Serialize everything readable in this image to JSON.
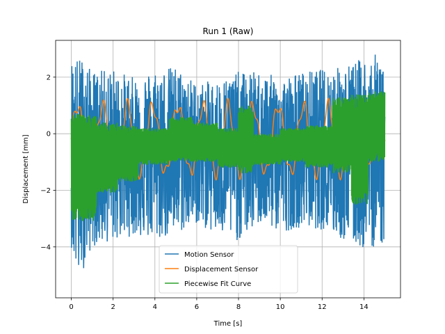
{
  "chart_data": {
    "type": "line",
    "title": "Run 1 (Raw)",
    "xlabel": "Time [s]",
    "ylabel": "Displacement [mm]",
    "xlim": [
      -0.75,
      15.75
    ],
    "ylim": [
      -5.8,
      3.3
    ],
    "xticks": [
      0,
      2,
      4,
      6,
      8,
      10,
      12,
      14
    ],
    "yticks": [
      -4,
      -2,
      0,
      2
    ],
    "grid": true,
    "legend_position": "lower-center",
    "series": [
      {
        "name": "Motion Sensor",
        "color": "#1f77b4",
        "x_range": [
          0,
          15
        ],
        "envelope_upper": [
          [
            0,
            2.7
          ],
          [
            0.5,
            2.7
          ],
          [
            1,
            2.2
          ],
          [
            2,
            2.3
          ],
          [
            3,
            2.0
          ],
          [
            4,
            2.3
          ],
          [
            5,
            2.4
          ],
          [
            6,
            1.8
          ],
          [
            7,
            1.9
          ],
          [
            8,
            2.2
          ],
          [
            9,
            2.2
          ],
          [
            10,
            2.0
          ],
          [
            11,
            2.2
          ],
          [
            12,
            2.3
          ],
          [
            13,
            2.4
          ],
          [
            14,
            2.7
          ],
          [
            15,
            2.9
          ]
        ],
        "envelope_lower": [
          [
            0,
            -4.0
          ],
          [
            0.3,
            -5.3
          ],
          [
            1,
            -4.0
          ],
          [
            2,
            -3.8
          ],
          [
            3,
            -3.6
          ],
          [
            4,
            -3.8
          ],
          [
            5,
            -3.6
          ],
          [
            6,
            -3.2
          ],
          [
            7,
            -3.6
          ],
          [
            8,
            -3.8
          ],
          [
            9,
            -3.2
          ],
          [
            10,
            -3.5
          ],
          [
            11,
            -3.3
          ],
          [
            12,
            -3.4
          ],
          [
            13,
            -3.8
          ],
          [
            14,
            -4.1
          ],
          [
            15,
            -3.9
          ]
        ]
      },
      {
        "name": "Displacement Sensor",
        "color": "#ff7f0e",
        "x_range": [
          0,
          15
        ],
        "period": 1.2,
        "amplitude": 1.2,
        "offset": -0.2
      },
      {
        "name": "Piecewise Fit Curve",
        "color": "#2ca02c",
        "x_range": [
          0,
          15
        ],
        "segments": [
          {
            "x0": 0.0,
            "x1": 1.2,
            "lo": -3.1,
            "hi": 0.7
          },
          {
            "x0": 1.2,
            "x1": 2.2,
            "lo": -2.1,
            "hi": 0.4
          },
          {
            "x0": 2.2,
            "x1": 3.2,
            "lo": -1.7,
            "hi": 0.3
          },
          {
            "x0": 3.2,
            "x1": 4.7,
            "lo": -1.1,
            "hi": 0.2
          },
          {
            "x0": 4.7,
            "x1": 5.8,
            "lo": -1.0,
            "hi": 0.6
          },
          {
            "x0": 5.8,
            "x1": 7.0,
            "lo": -1.0,
            "hi": 0.4
          },
          {
            "x0": 7.0,
            "x1": 8.0,
            "lo": -1.2,
            "hi": 0.2
          },
          {
            "x0": 8.0,
            "x1": 8.7,
            "lo": -1.4,
            "hi": 1.0
          },
          {
            "x0": 8.7,
            "x1": 10.0,
            "lo": -1.1,
            "hi": 0.0
          },
          {
            "x0": 10.0,
            "x1": 11.2,
            "lo": -1.0,
            "hi": 0.2
          },
          {
            "x0": 11.2,
            "x1": 12.5,
            "lo": -1.2,
            "hi": 0.3
          },
          {
            "x0": 12.5,
            "x1": 13.4,
            "lo": -1.4,
            "hi": 1.3
          },
          {
            "x0": 13.4,
            "x1": 14.2,
            "lo": -2.5,
            "hi": 1.4
          },
          {
            "x0": 14.2,
            "x1": 15.0,
            "lo": -1.0,
            "hi": 1.5
          }
        ]
      }
    ]
  }
}
